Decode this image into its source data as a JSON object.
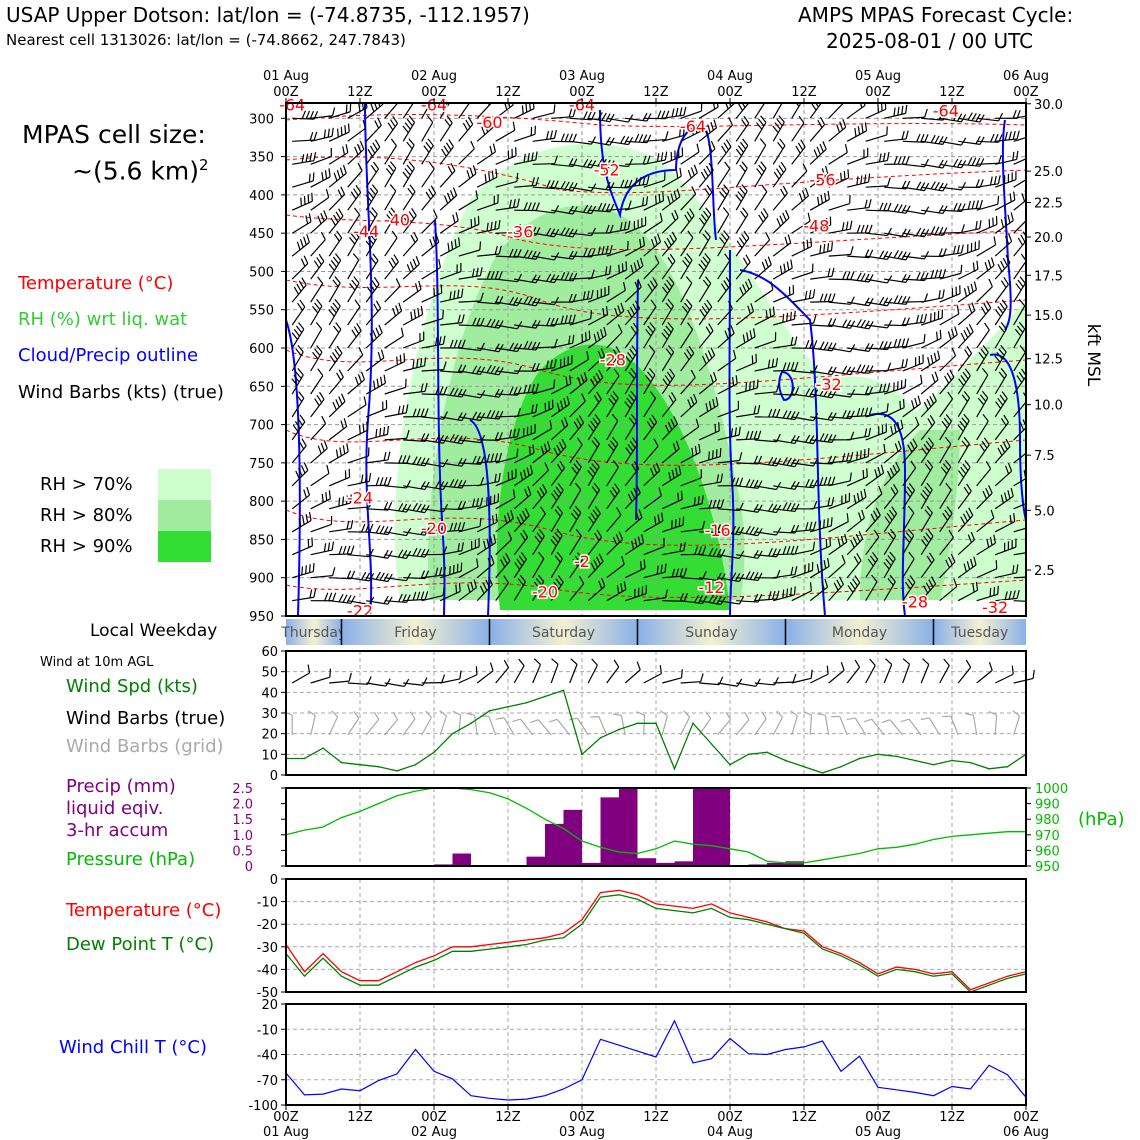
{
  "header": {
    "title_left": "USAP Upper Dotson: lat/lon = (-74.8735, -112.1957)",
    "subtitle_left": "Nearest cell 1313026: lat/lon = (-74.8662, 247.7843)",
    "title_right_1": "AMPS MPAS Forecast Cycle:",
    "title_right_2": "2025-08-01 / 00 UTC"
  },
  "side_labels": {
    "cell_size_1": "MPAS cell size:",
    "cell_size_2": "~(5.6 km)",
    "cell_size_sup": "2",
    "temperature": "Temperature (°C)",
    "rh": "RH (%) wrt liq. wat",
    "cloud": "Cloud/Precip outline",
    "wind_barbs": "Wind Barbs (kts) (true)",
    "rh70": "RH > 70%",
    "rh80": "RH > 80%",
    "rh90": "RH > 90%",
    "local_weekday": "Local Weekday",
    "wind10m": "Wind at 10m AGL",
    "wind_spd": "Wind Spd (kts)",
    "wind_barbs_true": "Wind Barbs (true)",
    "wind_barbs_grid": "Wind Barbs (grid)",
    "precip_1": "Precip (mm)",
    "precip_2": "liquid eqiv.",
    "precip_3": "3-hr accum",
    "pressure": "Pressure (hPa)",
    "temp2": "Temperature (°C)",
    "dewpoint": "Dew Point T (°C)",
    "windchill": "Wind Chill T (°C)",
    "hpa_unit": "(hPa)",
    "kft": "kft MSL"
  },
  "colors": {
    "temperature": "#ff0000",
    "rh_legend": "#33cc33",
    "cloud": "#0000ff",
    "dewpoint": "#008000",
    "precip": "#800080",
    "pressure": "#00bb00",
    "windchill": "#0000ff",
    "grid_barbs": "#aaaaaa",
    "rh70": "#ccffcc",
    "rh80": "#a0eda0",
    "rh90": "#33dd33"
  },
  "chart_data": [
    {
      "type": "heatmap",
      "name": "time-height cross section",
      "time_ticks_top": [
        {
          "h": 0,
          "l1": "01 Aug",
          "l2": "00Z"
        },
        {
          "h": 12,
          "l1": "",
          "l2": "12Z"
        },
        {
          "h": 24,
          "l1": "02 Aug",
          "l2": "00Z"
        },
        {
          "h": 36,
          "l1": "",
          "l2": "12Z"
        },
        {
          "h": 48,
          "l1": "03 Aug",
          "l2": "00Z"
        },
        {
          "h": 60,
          "l1": "",
          "l2": "12Z"
        },
        {
          "h": 72,
          "l1": "04 Aug",
          "l2": "00Z"
        },
        {
          "h": 84,
          "l1": "",
          "l2": "12Z"
        },
        {
          "h": 96,
          "l1": "05 Aug",
          "l2": "00Z"
        },
        {
          "h": 108,
          "l1": "",
          "l2": "12Z"
        },
        {
          "h": 120,
          "l1": "06 Aug",
          "l2": "00Z"
        }
      ],
      "pressure_ticks": [
        300,
        350,
        400,
        450,
        500,
        550,
        600,
        650,
        700,
        750,
        800,
        850,
        900,
        950
      ],
      "pressure_range": [
        280,
        950
      ],
      "kft_ticks": [
        "2.5",
        "5.0",
        "7.5",
        "10.0",
        "12.5",
        "15.0",
        "17.5",
        "20.0",
        "22.5",
        "25.0",
        "30.0"
      ],
      "kft_positions_hpa": [
        890,
        812,
        740,
        674,
        614,
        557,
        505,
        455,
        410,
        369,
        281
      ],
      "temp_labels": [
        {
          "h": 1,
          "p": 282,
          "t": "-64"
        },
        {
          "h": 24,
          "p": 282,
          "t": "-64"
        },
        {
          "h": 48,
          "p": 282,
          "t": "-64"
        },
        {
          "h": 33,
          "p": 305,
          "t": "-60"
        },
        {
          "h": 66,
          "p": 310,
          "t": "-64"
        },
        {
          "h": 107,
          "p": 290,
          "t": "-64"
        },
        {
          "h": 52,
          "p": 367,
          "t": "-52"
        },
        {
          "h": 87,
          "p": 380,
          "t": "-56"
        },
        {
          "h": 18,
          "p": 432,
          "t": "-40"
        },
        {
          "h": 13,
          "p": 447,
          "t": "-44"
        },
        {
          "h": 38,
          "p": 448,
          "t": "-36"
        },
        {
          "h": 86,
          "p": 440,
          "t": "-48"
        },
        {
          "h": 53,
          "p": 615,
          "t": "-28"
        },
        {
          "h": 88,
          "p": 647,
          "t": "-32"
        },
        {
          "h": 12,
          "p": 795,
          "t": "-24"
        },
        {
          "h": 24,
          "p": 835,
          "t": "-20"
        },
        {
          "h": 70,
          "p": 838,
          "t": "-16"
        },
        {
          "h": 48,
          "p": 878,
          "t": "-2"
        },
        {
          "h": 69,
          "p": 912,
          "t": "-12"
        },
        {
          "h": 42,
          "p": 918,
          "t": "-20"
        },
        {
          "h": 12,
          "p": 943,
          "t": "-22"
        },
        {
          "h": 102,
          "p": 931,
          "t": "-28"
        },
        {
          "h": 115,
          "p": 938,
          "t": "-32"
        }
      ]
    },
    {
      "type": "table",
      "name": "local weekday",
      "days": [
        {
          "label": "Thursday",
          "start": 0,
          "end": 9
        },
        {
          "label": "Friday",
          "start": 9,
          "end": 33
        },
        {
          "label": "Saturday",
          "start": 33,
          "end": 57
        },
        {
          "label": "Sunday",
          "start": 57,
          "end": 81
        },
        {
          "label": "Monday",
          "start": 81,
          "end": 105
        },
        {
          "label": "Tuesday",
          "start": 105,
          "end": 120
        }
      ]
    },
    {
      "type": "line",
      "name": "10m wind speed",
      "ylim": [
        0,
        60
      ],
      "yticks": [
        0,
        10,
        20,
        30,
        40,
        50,
        60
      ],
      "series": [
        {
          "name": "Wind Spd (kts)",
          "x": [
            0,
            3,
            6,
            9,
            12,
            15,
            18,
            21,
            24,
            27,
            30,
            33,
            36,
            39,
            42,
            45,
            48,
            51,
            54,
            57,
            60,
            63,
            66,
            69,
            72,
            75,
            78,
            81,
            84,
            87,
            90,
            93,
            96,
            99,
            102,
            105,
            108,
            111,
            114,
            117,
            120
          ],
          "values": [
            8,
            8,
            13,
            6,
            5,
            4,
            2,
            5,
            11,
            20,
            25,
            31,
            33,
            35,
            38,
            41,
            10,
            18,
            22,
            25,
            25,
            3,
            25,
            15,
            5,
            10,
            11,
            7,
            4,
            1,
            4,
            8,
            10,
            9,
            7,
            5,
            7,
            6,
            3,
            4,
            10
          ]
        }
      ]
    },
    {
      "type": "bar",
      "name": "precipitation",
      "ylabel": "Precip (mm)",
      "ylim": [
        0,
        2.5
      ],
      "yticks": [
        0,
        0.5,
        1.0,
        1.5,
        2.0,
        2.5
      ],
      "x": [
        0,
        3,
        6,
        9,
        12,
        15,
        18,
        21,
        24,
        27,
        30,
        33,
        36,
        39,
        42,
        45,
        48,
        51,
        54,
        57,
        60,
        63,
        66,
        69,
        72,
        75,
        78,
        81,
        84,
        87,
        90,
        93,
        96,
        99,
        102,
        105,
        108,
        111,
        114,
        117
      ],
      "values": [
        0,
        0,
        0,
        0,
        0,
        0,
        0,
        0,
        0.05,
        0.4,
        0,
        0,
        0,
        0.3,
        1.35,
        1.8,
        0.1,
        2.2,
        2.5,
        0.25,
        0.1,
        0.15,
        2.5,
        2.5,
        0,
        0.05,
        0.1,
        0.15,
        0,
        0,
        0,
        0,
        0,
        0,
        0,
        0,
        0,
        0,
        0,
        0
      ]
    },
    {
      "type": "line",
      "name": "surface pressure",
      "ylim": [
        950,
        1000
      ],
      "yticks": [
        950,
        960,
        970,
        980,
        990,
        1000
      ],
      "series": [
        {
          "name": "Pressure (hPa)",
          "x": [
            0,
            3,
            6,
            9,
            12,
            15,
            18,
            21,
            24,
            27,
            30,
            33,
            36,
            39,
            42,
            45,
            48,
            51,
            54,
            57,
            60,
            63,
            66,
            69,
            72,
            75,
            78,
            81,
            84,
            87,
            90,
            93,
            96,
            99,
            102,
            105,
            108,
            111,
            114,
            117,
            120
          ],
          "values": [
            970,
            973,
            975,
            981,
            985,
            990,
            995,
            998,
            1000,
            1000,
            999,
            997,
            993,
            987,
            980,
            974,
            966,
            962,
            959,
            958,
            961,
            966,
            964,
            963,
            961,
            959,
            953,
            952,
            952,
            954,
            956,
            958,
            961,
            962,
            964,
            967,
            969,
            970,
            971,
            972,
            972
          ]
        }
      ]
    },
    {
      "type": "line",
      "name": "temperature and dew point",
      "ylim": [
        -50,
        0
      ],
      "yticks": [
        0,
        -10,
        -20,
        -30,
        -40,
        -50
      ],
      "series": [
        {
          "name": "Temperature (°C)",
          "x": [
            0,
            3,
            6,
            9,
            12,
            15,
            18,
            21,
            24,
            27,
            30,
            33,
            36,
            39,
            42,
            45,
            48,
            51,
            54,
            57,
            60,
            63,
            66,
            69,
            72,
            75,
            78,
            81,
            84,
            87,
            90,
            93,
            96,
            99,
            102,
            105,
            108,
            111,
            114,
            117,
            120
          ],
          "values": [
            -29,
            -41,
            -33,
            -41,
            -45,
            -45,
            -41,
            -37,
            -34,
            -30,
            -30,
            -29,
            -28,
            -27,
            -26,
            -24,
            -18,
            -6,
            -5,
            -7,
            -11,
            -12,
            -13,
            -11,
            -15,
            -17,
            -19,
            -22,
            -23,
            -30,
            -33,
            -37,
            -42,
            -39,
            -40,
            -42,
            -41,
            -49,
            -46,
            -43,
            -41
          ]
        },
        {
          "name": "Dew Point T (°C)",
          "x": [
            0,
            3,
            6,
            9,
            12,
            15,
            18,
            21,
            24,
            27,
            30,
            33,
            36,
            39,
            42,
            45,
            48,
            51,
            54,
            57,
            60,
            63,
            66,
            69,
            72,
            75,
            78,
            81,
            84,
            87,
            90,
            93,
            96,
            99,
            102,
            105,
            108,
            111,
            114,
            117,
            120
          ],
          "values": [
            -33,
            -43,
            -35,
            -43,
            -47,
            -47,
            -43,
            -39,
            -36,
            -32,
            -32,
            -31,
            -30,
            -29,
            -27,
            -26,
            -20,
            -8,
            -7,
            -9,
            -13,
            -14,
            -15,
            -13,
            -17,
            -18,
            -20,
            -22,
            -24,
            -31,
            -34,
            -38,
            -43,
            -40,
            -41,
            -43,
            -42,
            -50,
            -47,
            -44,
            -42
          ]
        }
      ]
    },
    {
      "type": "line",
      "name": "wind chill",
      "ylim": [
        -100,
        20
      ],
      "yticks": [
        20,
        -10,
        -40,
        -70,
        -100
      ],
      "series": [
        {
          "name": "Wind Chill T (°C)",
          "x": [
            0,
            3,
            6,
            9,
            12,
            15,
            18,
            21,
            24,
            27,
            30,
            33,
            36,
            39,
            42,
            45,
            48,
            51,
            54,
            57,
            60,
            63,
            66,
            69,
            72,
            75,
            78,
            81,
            84,
            87,
            90,
            93,
            96,
            99,
            102,
            105,
            108,
            111,
            114,
            117,
            120
          ],
          "values": [
            -62,
            -88,
            -87,
            -81,
            -83,
            -71,
            -63,
            -34,
            -60,
            -69,
            -89,
            -92,
            -94,
            -93,
            -89,
            -81,
            -70,
            -22,
            -29,
            -36,
            -43,
            0,
            -50,
            -45,
            -21,
            -39,
            -40,
            -34,
            -31,
            -24,
            -60,
            -42,
            -79,
            -82,
            -85,
            -89,
            -78,
            -81,
            -53,
            -64,
            -91
          ]
        }
      ]
    }
  ]
}
